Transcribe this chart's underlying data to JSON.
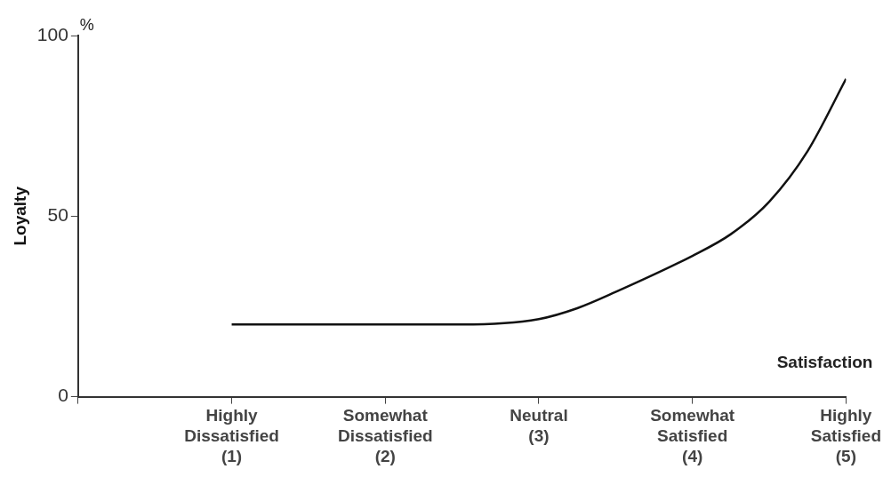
{
  "chart_data": {
    "type": "line",
    "xlabel": "Satisfaction",
    "ylabel": "Loyalty",
    "annotations": [
      "%"
    ],
    "x": [
      1,
      1.5,
      2,
      2.5,
      3,
      3.25,
      3.5,
      4,
      4.25,
      4.5,
      4.75,
      5
    ],
    "series": [
      {
        "color": "#111111",
        "values": [
          20,
          20,
          20,
          20,
          21.5,
          24.5,
          29,
          39,
          45,
          54,
          68,
          88
        ]
      }
    ],
    "xlim": [
      0,
      5
    ],
    "xticks": [
      {
        "value": 0,
        "label": null
      },
      {
        "value": 1,
        "label": "Highly\nDissatisfied\n(1)"
      },
      {
        "value": 2,
        "label": "Somewhat\nDissatisfied\n(2)"
      },
      {
        "value": 3,
        "label": "Neutral\n(3)"
      },
      {
        "value": 4,
        "label": "Somewhat\nSatisfied\n(4)"
      },
      {
        "value": 5,
        "label": "Highly\nSatisfied\n(5)"
      }
    ],
    "ylim": [
      0,
      100
    ],
    "yticks": [
      0,
      50,
      100
    ],
    "grid": false,
    "legend": false,
    "marker": "none",
    "line_style": "solid"
  }
}
